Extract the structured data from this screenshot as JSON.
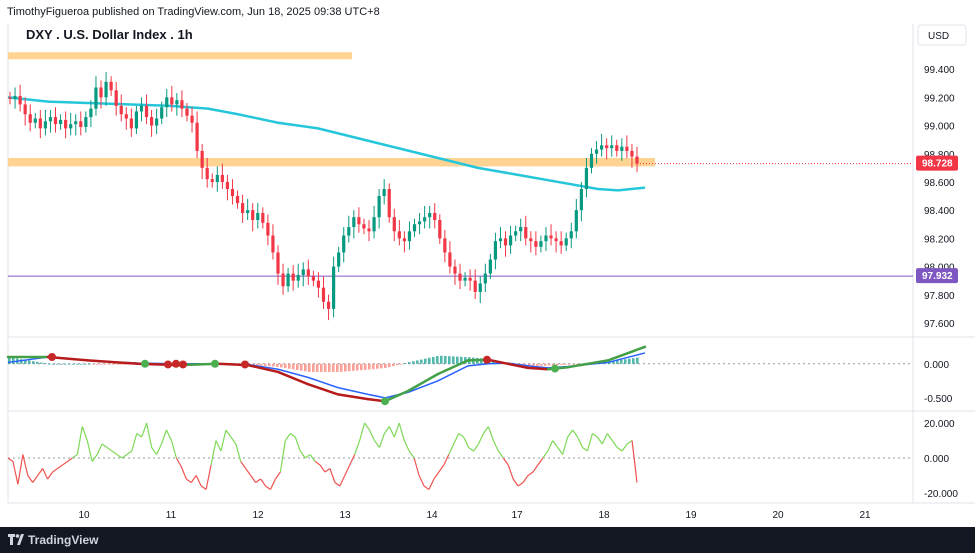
{
  "header": {
    "publisher_line": "TimothyFigueroa published on TradingView.com, Jun 18, 2025 09:38 UTC+8"
  },
  "footer": {
    "brand": "TradingView"
  },
  "chart_data": [
    {
      "type": "candlestick",
      "title": "DXY . U.S. Dollar Index . 1h",
      "currency": "USD",
      "x_tick_labels": [
        "10",
        "11",
        "12",
        "13",
        "14",
        "17",
        "18",
        "19",
        "20",
        "21"
      ],
      "y_ticks": [
        "99.400",
        "99.200",
        "99.000",
        "98.800",
        "98.600",
        "98.400",
        "98.200",
        "98.000",
        "97.800",
        "97.600"
      ],
      "ylim": [
        97.55,
        99.55
      ],
      "last_price_label": "98.728",
      "horizontal_line_label": "97.932",
      "horizontal_line_value": 97.932,
      "resistance_zones": [
        {
          "from": 99.47,
          "to": 99.52
        },
        {
          "from": 98.71,
          "to": 98.77
        }
      ],
      "colors": {
        "up": "#089981",
        "down": "#f23645",
        "ma": "#26c6da",
        "hline": "#7e57c2",
        "zone": "#ffcc80",
        "price_tag": "#f23645",
        "hline_tag": "#7e57c2"
      },
      "moving_average": [
        [
          0,
          99.2
        ],
        [
          40,
          99.17
        ],
        [
          80,
          99.16
        ],
        [
          120,
          99.15
        ],
        [
          160,
          99.14
        ],
        [
          200,
          99.12
        ],
        [
          230,
          99.08
        ],
        [
          270,
          99.02
        ],
        [
          310,
          98.98
        ],
        [
          350,
          98.91
        ],
        [
          390,
          98.84
        ],
        [
          430,
          98.77
        ],
        [
          470,
          98.7
        ],
        [
          510,
          98.65
        ],
        [
          550,
          98.6
        ],
        [
          590,
          98.55
        ],
        [
          610,
          98.54
        ],
        [
          637,
          98.56
        ]
      ],
      "closes": [
        99.19,
        99.21,
        99.15,
        99.08,
        99.02,
        99.05,
        98.98,
        99.03,
        99.06,
        99.01,
        99.04,
        98.98,
        99.01,
        99.03,
        98.99,
        99.06,
        99.12,
        99.27,
        99.2,
        99.31,
        99.25,
        99.14,
        99.08,
        99.05,
        98.98,
        99.1,
        99.14,
        99.06,
        99.0,
        99.05,
        99.13,
        99.2,
        99.15,
        99.18,
        99.12,
        99.07,
        99.02,
        98.82,
        98.7,
        98.62,
        98.6,
        98.65,
        98.6,
        98.55,
        98.5,
        98.45,
        98.38,
        98.4,
        98.33,
        98.38,
        98.31,
        98.22,
        98.1,
        97.95,
        97.86,
        97.95,
        97.9,
        97.94,
        97.98,
        97.93,
        97.9,
        97.85,
        97.75,
        97.7,
        98.0,
        98.1,
        98.22,
        98.28,
        98.35,
        98.3,
        98.27,
        98.25,
        98.35,
        98.5,
        98.55,
        98.35,
        98.25,
        98.2,
        98.18,
        98.25,
        98.3,
        98.32,
        98.35,
        98.38,
        98.33,
        98.2,
        98.1,
        98.0,
        97.95,
        97.9,
        97.92,
        97.9,
        97.82,
        97.88,
        97.95,
        98.05,
        98.18,
        98.2,
        98.15,
        98.22,
        98.25,
        98.28,
        98.2,
        98.18,
        98.14,
        98.18,
        98.22,
        98.2,
        98.18,
        98.15,
        98.2,
        98.25,
        98.4,
        98.55,
        98.7,
        98.8,
        98.83,
        98.86,
        98.84,
        98.86,
        98.82,
        98.85,
        98.82,
        98.78,
        98.73
      ],
      "macd": {
        "zero_label": "0.000",
        "y_ticks": [
          "0.000",
          "-0.500"
        ],
        "ylim": [
          -0.65,
          0.35
        ],
        "line": [
          [
            0,
            0.1
          ],
          [
            40,
            0.1
          ],
          [
            80,
            0.05
          ],
          [
            130,
            0.0
          ],
          [
            170,
            -0.02
          ],
          [
            210,
            0.0
          ],
          [
            240,
            -0.02
          ],
          [
            270,
            -0.12
          ],
          [
            300,
            -0.3
          ],
          [
            330,
            -0.45
          ],
          [
            360,
            -0.52
          ],
          [
            377,
            -0.55
          ],
          [
            400,
            -0.4
          ],
          [
            430,
            -0.15
          ],
          [
            460,
            0.05
          ],
          [
            480,
            0.06
          ],
          [
            500,
            0.0
          ],
          [
            520,
            -0.06
          ],
          [
            540,
            -0.08
          ],
          [
            560,
            -0.05
          ],
          [
            600,
            0.05
          ],
          [
            637,
            0.25
          ]
        ],
        "signal": [
          [
            0,
            0.02
          ],
          [
            40,
            0.1
          ],
          [
            80,
            0.05
          ],
          [
            130,
            0.01
          ],
          [
            170,
            0.0
          ],
          [
            210,
            0.0
          ],
          [
            240,
            -0.01
          ],
          [
            270,
            -0.08
          ],
          [
            300,
            -0.2
          ],
          [
            330,
            -0.35
          ],
          [
            360,
            -0.45
          ],
          [
            377,
            -0.5
          ],
          [
            400,
            -0.42
          ],
          [
            430,
            -0.25
          ],
          [
            460,
            -0.03
          ],
          [
            480,
            0.0
          ],
          [
            500,
            0.01
          ],
          [
            520,
            -0.03
          ],
          [
            540,
            -0.06
          ],
          [
            560,
            -0.04
          ],
          [
            600,
            0.02
          ],
          [
            637,
            0.16
          ]
        ],
        "cross_points": [
          [
            44,
            0.1
          ],
          [
            137,
            0.0
          ],
          [
            160,
            -0.01
          ],
          [
            168,
            0.0
          ],
          [
            175,
            -0.01
          ],
          [
            207,
            0.0
          ],
          [
            237,
            -0.01
          ],
          [
            377,
            -0.55
          ],
          [
            479,
            0.06
          ],
          [
            547,
            -0.07
          ]
        ]
      },
      "oscillator": {
        "y_ticks": [
          "20.000",
          "0.000",
          "-20.000"
        ],
        "ylim": [
          -24,
          24
        ],
        "values": [
          0,
          -2,
          -15,
          2,
          -10,
          -14,
          -10,
          -6,
          -12,
          -8,
          -6,
          -4,
          -2,
          0,
          2,
          18,
          10,
          -2,
          2,
          8,
          6,
          4,
          2,
          0,
          2,
          4,
          14,
          12,
          20,
          6,
          2,
          8,
          16,
          10,
          0,
          -5,
          -12,
          -14,
          -10,
          -16,
          -18,
          -4,
          10,
          4,
          16,
          12,
          8,
          -2,
          -6,
          -10,
          -14,
          -12,
          -16,
          -18,
          -12,
          -8,
          10,
          14,
          12,
          4,
          0,
          2,
          -2,
          -4,
          -8,
          -6,
          -14,
          -16,
          -10,
          -4,
          2,
          10,
          20,
          16,
          10,
          6,
          14,
          18,
          12,
          20,
          10,
          4,
          0,
          -10,
          -16,
          -18,
          -12,
          -8,
          -4,
          2,
          8,
          14,
          12,
          6,
          4,
          8,
          14,
          18,
          10,
          4,
          0,
          -4,
          -12,
          -16,
          -14,
          -10,
          -8,
          -4,
          0,
          4,
          10,
          6,
          2,
          12,
          16,
          12,
          6,
          4,
          14,
          12,
          8,
          14,
          10,
          6,
          4,
          8,
          10,
          -14
        ],
        "colors": {
          "pos": "#7ed957",
          "neg": "#ef5350"
        }
      }
    }
  ]
}
